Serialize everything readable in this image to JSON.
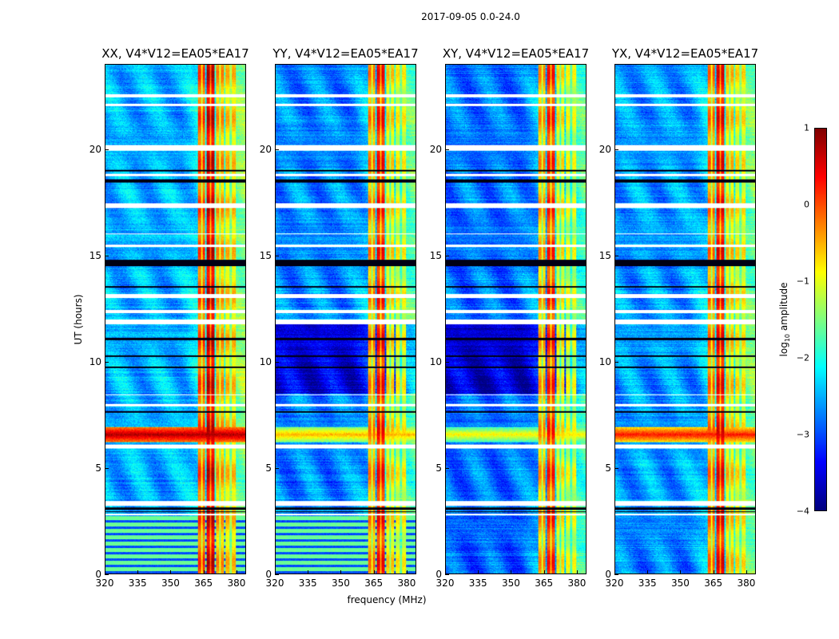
{
  "figure": {
    "suptitle": "2017-09-05 0.0-24.0"
  },
  "chart_data": {
    "type": "heatmap",
    "xlabel": "frequency (MHz)",
    "ylabel": "UT (hours)",
    "xlim": [
      320,
      384.4
    ],
    "ylim": [
      0,
      24
    ],
    "xticks": [
      "320",
      "335",
      "350",
      "365",
      "380"
    ],
    "xtick_values": [
      320,
      335,
      350,
      365,
      380
    ],
    "yticks": [
      "0",
      "5",
      "10",
      "15",
      "20"
    ],
    "ytick_values": [
      0,
      5,
      10,
      15,
      20
    ],
    "colormap": "jet",
    "colorbar": {
      "range": [
        -4,
        1
      ],
      "ticks": [
        "1",
        "0",
        "−1",
        "−2",
        "−3",
        "−4"
      ],
      "tick_values": [
        1,
        0,
        -1,
        -2,
        -3,
        -4
      ],
      "label_prefix": "log",
      "label_sub": "10",
      "label_suffix": " amplitude"
    },
    "channels": [
      {
        "f0": 362.5,
        "f1": 366.0,
        "level": -0.4
      },
      {
        "f0": 366.7,
        "f1": 370.2,
        "level": 0.2
      },
      {
        "f0": 371.0,
        "f1": 374.6,
        "level": -0.8
      },
      {
        "f0": 375.3,
        "f1": 380.0,
        "level": -1.0
      }
    ],
    "flagged_white_hours": [
      [
        22.45,
        22.6
      ],
      [
        22.05,
        22.15
      ],
      [
        19.95,
        20.2
      ],
      [
        18.75,
        18.85
      ],
      [
        17.25,
        17.45
      ],
      [
        16.0,
        16.05
      ],
      [
        15.4,
        15.5
      ],
      [
        13.0,
        13.2
      ],
      [
        12.3,
        12.45
      ],
      [
        11.75,
        12.0
      ],
      [
        8.4,
        8.45
      ],
      [
        7.9,
        8.0
      ],
      [
        5.9,
        6.1
      ],
      [
        3.2,
        3.4
      ],
      [
        2.75,
        2.8
      ]
    ],
    "flagged_black_hours": [
      [
        18.45,
        18.6
      ],
      [
        18.95,
        19.05
      ],
      [
        14.5,
        14.8
      ],
      [
        13.5,
        13.55
      ],
      [
        11.0,
        11.1
      ],
      [
        10.2,
        10.3
      ],
      [
        9.7,
        9.75
      ],
      [
        7.6,
        7.65
      ],
      [
        3.0,
        3.1
      ],
      [
        2.9,
        2.93
      ]
    ],
    "panels": [
      {
        "title": "XX, V4*V12=EA05*EA17",
        "base": -2.5,
        "channel_boost": 0.3,
        "low_stripes": true,
        "rfi_level": 0.8,
        "dark_night": false
      },
      {
        "title": "YY, V4*V12=EA05*EA17",
        "base": -2.7,
        "channel_boost": 0.0,
        "low_stripes": true,
        "rfi_level": -0.5,
        "dark_night": true
      },
      {
        "title": "XY, V4*V12=EA05*EA17",
        "base": -2.8,
        "channel_boost": -0.1,
        "low_stripes": false,
        "rfi_level": -0.8,
        "dark_night": true
      },
      {
        "title": "YX, V4*V12=EA05*EA17",
        "base": -2.6,
        "channel_boost": 0.1,
        "low_stripes": false,
        "rfi_level": 0.3,
        "dark_night": false
      }
    ]
  }
}
